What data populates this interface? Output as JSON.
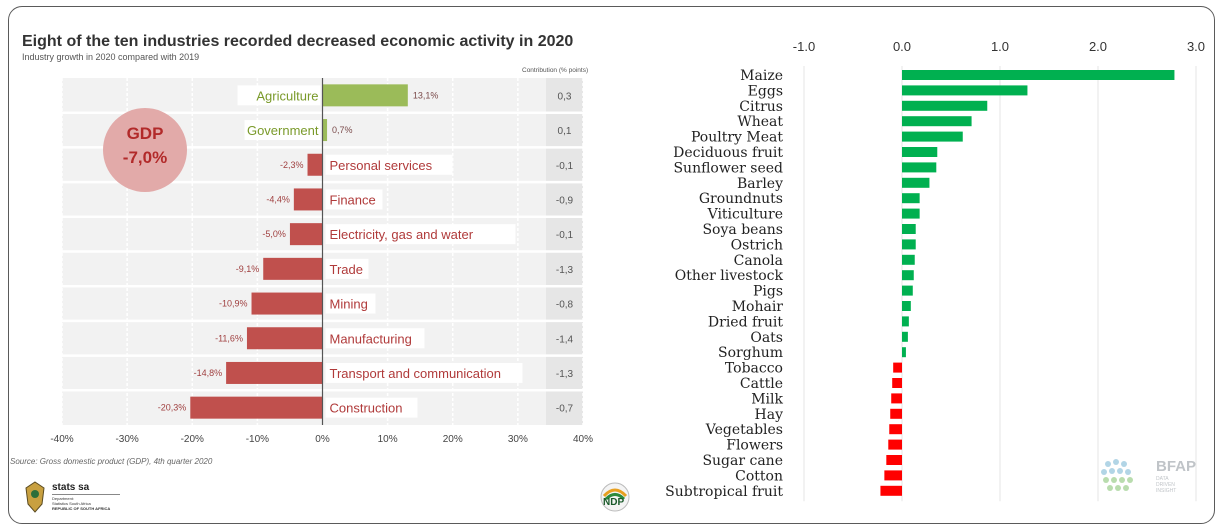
{
  "left_panel": {
    "title": "Eight of the ten industries recorded decreased economic activity in 2020",
    "subtitle": "Industry growth in 2020 compared with 2019",
    "contribution_header": "Contribution (% points)",
    "gdp_label": "GDP",
    "gdp_value": "-7,0%",
    "source": "Source: Gross domestic product (GDP), 4th quarter 2020",
    "stats_logo_text": "stats sa",
    "stats_logo_sub1": "Department:",
    "stats_logo_sub2": "Statistics South Africa",
    "stats_logo_sub3": "REPUBLIC OF SOUTH AFRICA",
    "ndp_logo_text": "NDP"
  },
  "right_panel": {
    "bfap_logo_text": "BFAP",
    "bfap_sub1": "DATA",
    "bfap_sub2": "DRIVEN",
    "bfap_sub3": "INSIGHT"
  },
  "colors": {
    "positive_left": "#9bbb59",
    "negative_left": "#c0504d",
    "positive_right": "#00b050",
    "negative_right": "#ff0000",
    "gdp_circle": "#e2aaa9"
  },
  "chart_data": [
    {
      "type": "bar",
      "orientation": "horizontal",
      "title": "Eight of the ten industries recorded decreased economic activity in 2020",
      "subtitle": "Industry growth in 2020 compared with 2019",
      "categories": [
        "Agriculture",
        "Government",
        "Personal services",
        "Finance",
        "Electricity, gas and water",
        "Trade",
        "Mining",
        "Manufacturing",
        "Transport and communication",
        "Construction"
      ],
      "values": [
        13.1,
        0.7,
        -2.3,
        -4.4,
        -5.0,
        -9.1,
        -10.9,
        -11.6,
        -14.8,
        -20.3
      ],
      "value_labels": [
        "13,1%",
        "0,7%",
        "-2,3%",
        "-4,4%",
        "-5,0%",
        "-9,1%",
        "-10,9%",
        "-11,6%",
        "-14,8%",
        "-20,3%"
      ],
      "contribution_labels": [
        "0,3",
        "0,1",
        "-0,1",
        "-0,9",
        "-0,1",
        "-1,3",
        "-0,8",
        "-1,4",
        "-1,3",
        "-0,7"
      ],
      "xlim": [
        -40,
        40
      ],
      "xticks": [
        "-40%",
        "-30%",
        "-20%",
        "-10%",
        "0%",
        "10%",
        "20%",
        "30%",
        "40%"
      ],
      "grid": true,
      "annotation": "GDP -7,0%"
    },
    {
      "type": "bar",
      "orientation": "horizontal",
      "categories": [
        "Maize",
        "Eggs",
        "Citrus",
        "Wheat",
        "Poultry Meat",
        "Deciduous fruit",
        "Sunflower seed",
        "Barley",
        "Groundnuts",
        "Viticulture",
        "Soya beans",
        "Ostrich",
        "Canola",
        "Other livestock",
        "Pigs",
        "Mohair",
        "Dried fruit",
        "Oats",
        "Sorghum",
        "Tobacco",
        "Cattle",
        "Milk",
        "Hay",
        "Vegetables",
        "Flowers",
        "Sugar cane",
        "Cotton",
        "Subtropical fruit"
      ],
      "values": [
        2.78,
        1.28,
        0.87,
        0.71,
        0.62,
        0.36,
        0.35,
        0.28,
        0.18,
        0.18,
        0.14,
        0.14,
        0.13,
        0.12,
        0.11,
        0.09,
        0.07,
        0.06,
        0.04,
        -0.09,
        -0.1,
        -0.11,
        -0.12,
        -0.13,
        -0.14,
        -0.16,
        -0.18,
        -0.22
      ],
      "xlim": [
        -1.0,
        3.0
      ],
      "xticks": [
        "-1.0",
        "0.0",
        "1.0",
        "2.0",
        "3.0"
      ],
      "xaxis_position": "top",
      "grid": true
    }
  ]
}
